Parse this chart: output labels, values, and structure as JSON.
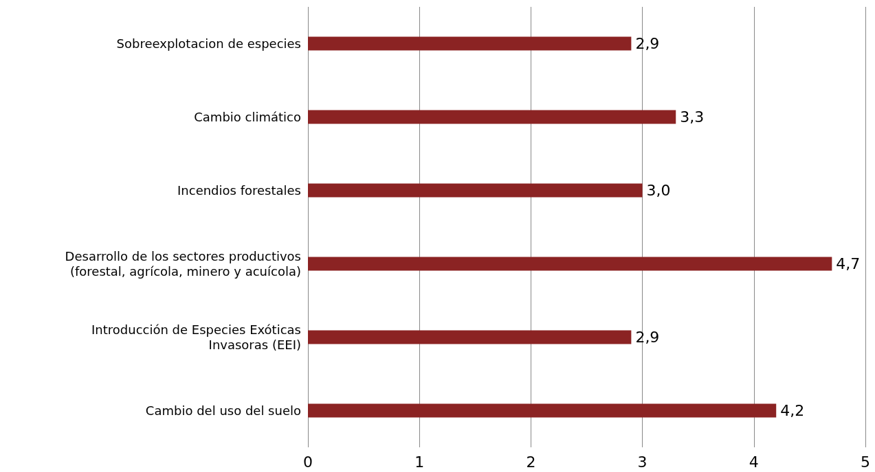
{
  "chart_data": {
    "type": "bar",
    "orientation": "horizontal",
    "categories": [
      "Sobreexplotacion de especies",
      "Cambio climático",
      "Incendios forestales",
      "Desarrollo de los sectores productivos\n(forestal, agrícola, minero y acuícola)",
      "Introducción de Especies Exóticas\nInvasoras (EEI)",
      "Cambio del uso del suelo"
    ],
    "values": [
      2.9,
      3.3,
      3.0,
      4.7,
      2.9,
      4.2
    ],
    "value_labels": [
      "2,9",
      "3,3",
      "3,0",
      "4,7",
      "2,9",
      "4,2"
    ],
    "color": "#8b2323",
    "xlim": [
      0,
      5
    ],
    "xticks": [
      0,
      1,
      2,
      3,
      4,
      5
    ],
    "grid": "x"
  }
}
